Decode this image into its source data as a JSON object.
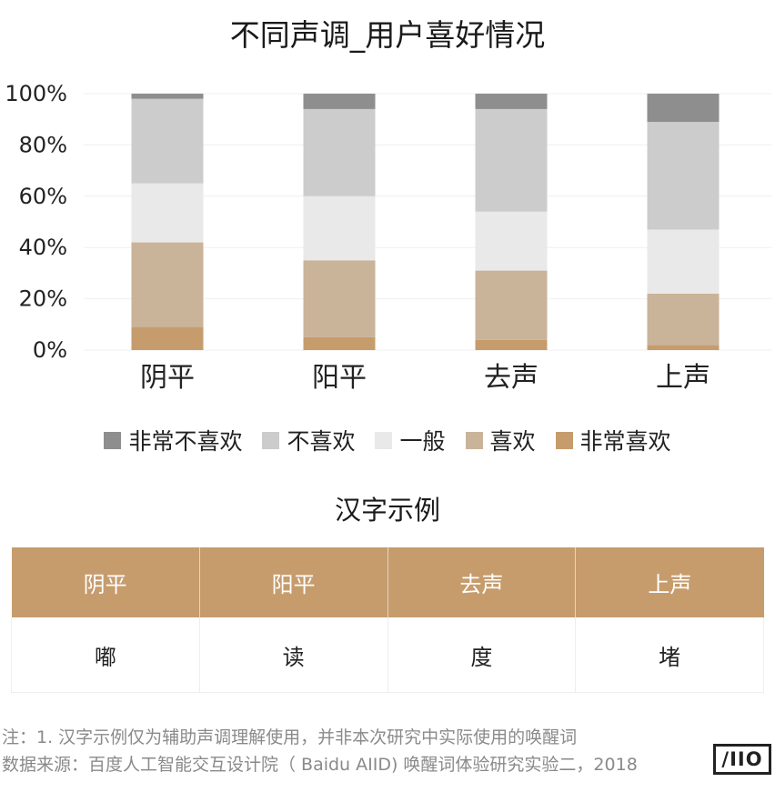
{
  "chart_data": {
    "type": "bar",
    "stacked": true,
    "title": "不同声调_用户喜好情况",
    "categories": [
      "阴平",
      "阳平",
      "去声",
      "上声"
    ],
    "y_ticks": [
      "0%",
      "20%",
      "40%",
      "60%",
      "80%",
      "100%"
    ],
    "ylim": [
      0,
      100
    ],
    "grid": true,
    "legend_position": "bottom",
    "series": [
      {
        "name": "非常喜欢",
        "color": "#c69c6d",
        "values": [
          9,
          5,
          4,
          2
        ]
      },
      {
        "name": "喜欢",
        "color": "#c9b399",
        "values": [
          33,
          30,
          27,
          20
        ]
      },
      {
        "name": "一般",
        "color": "#e9e9e9",
        "values": [
          23,
          25,
          23,
          25
        ]
      },
      {
        "name": "不喜欢",
        "color": "#cccccc",
        "values": [
          33,
          34,
          40,
          42
        ]
      },
      {
        "name": "非常不喜欢",
        "color": "#8e8e8e",
        "values": [
          2,
          6,
          6,
          11
        ]
      }
    ],
    "legend_order": [
      "非常不喜欢",
      "不喜欢",
      "一般",
      "喜欢",
      "非常喜欢"
    ]
  },
  "table": {
    "title": "汉字示例",
    "headers": [
      "阴平",
      "阳平",
      "去声",
      "上声"
    ],
    "row": [
      "嘟",
      "读",
      "度",
      "堵"
    ]
  },
  "footnote": {
    "line1": "注：1. 汉字示例仅为辅助声调理解使用，并非本次研究中实际使用的唤醒词",
    "line2": "数据来源：百度人工智能交互设计院（ Baidu AIID) 唤醒词体验研究实验二，2018"
  },
  "logo": {
    "text": "/IIO"
  }
}
